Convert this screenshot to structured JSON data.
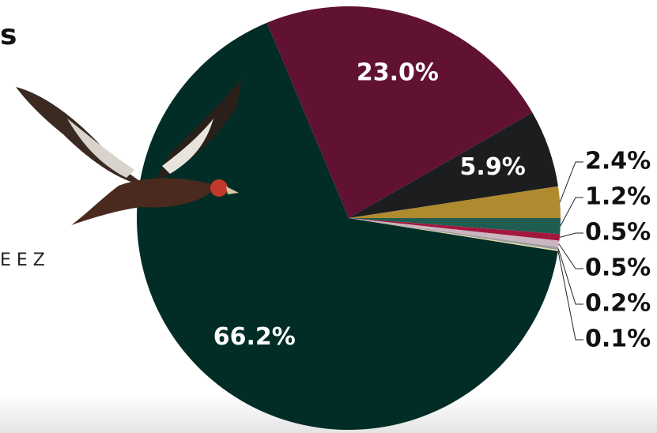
{
  "chart_data": {
    "type": "pie",
    "title": "s",
    "annotation": "E E Z",
    "values": [
      66.2,
      23.0,
      5.9,
      2.4,
      1.2,
      0.5,
      0.5,
      0.2,
      0.1
    ],
    "value_labels": [
      "66.2%",
      "23.0%",
      "5.9%",
      "2.4%",
      "1.2%",
      "0.5%",
      "0.5%",
      "0.2%",
      "0.1%"
    ],
    "colors": [
      "#022d26",
      "#611233",
      "#1b1d1f",
      "#b08a2e",
      "#1f5d52",
      "#a3173f",
      "#c9b6c0",
      "#9c9c9c",
      "#e6d9a8"
    ]
  }
}
